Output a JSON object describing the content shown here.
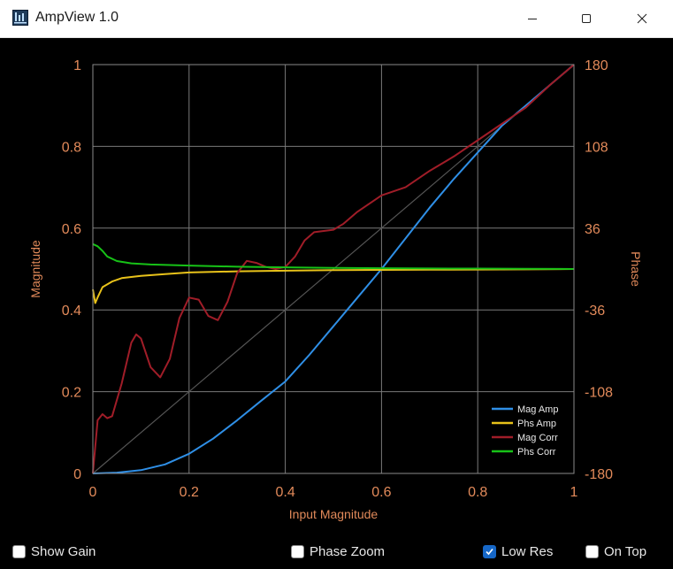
{
  "window": {
    "title": "AmpView 1.0",
    "icon": "ampview-app-icon"
  },
  "controls": {
    "show_gain": {
      "label": "Show Gain",
      "checked": false
    },
    "phase_zoom": {
      "label": "Phase Zoom",
      "checked": false
    },
    "low_res": {
      "label": "Low Res",
      "checked": true
    },
    "on_top": {
      "label": "On Top",
      "checked": false
    }
  },
  "chart_data": {
    "type": "line",
    "xlabel": "Input Magnitude",
    "ylabel": "Magnitude",
    "y2label": "Phase",
    "xlim": [
      0,
      1
    ],
    "ylim": [
      0,
      1
    ],
    "y2lim": [
      -180,
      180
    ],
    "xticks": [
      "0",
      "0.2",
      "0.4",
      "0.6",
      "0.8",
      "1"
    ],
    "yticks": [
      "0",
      "0.2",
      "0.4",
      "0.6",
      "0.8",
      "1"
    ],
    "y2ticks": [
      "-180",
      "-108",
      "-36",
      "36",
      "108",
      "180"
    ],
    "grid": true,
    "legend_position": "bottom-right",
    "reference_line": {
      "x": [
        0,
        1
      ],
      "y": [
        0,
        1
      ],
      "color": "#555555"
    },
    "series": [
      {
        "name": "Mag Amp",
        "color": "#2f8fe6",
        "axis": "left",
        "x": [
          0,
          0.05,
          0.1,
          0.15,
          0.2,
          0.25,
          0.3,
          0.35,
          0.4,
          0.45,
          0.5,
          0.55,
          0.6,
          0.65,
          0.7,
          0.75,
          0.8,
          0.85,
          0.9,
          0.95,
          1.0
        ],
        "y": [
          0,
          0.002,
          0.008,
          0.022,
          0.048,
          0.085,
          0.13,
          0.178,
          0.225,
          0.29,
          0.36,
          0.43,
          0.5,
          0.575,
          0.65,
          0.72,
          0.785,
          0.85,
          0.9,
          0.95,
          1.0
        ]
      },
      {
        "name": "Phs Amp",
        "color": "#e8c21a",
        "axis": "right",
        "x": [
          0,
          0.005,
          0.01,
          0.02,
          0.04,
          0.06,
          0.1,
          0.15,
          0.2,
          0.3,
          0.4,
          0.5,
          0.6,
          0.7,
          0.8,
          0.9,
          1.0
        ],
        "y": [
          -18,
          -30,
          -25,
          -16,
          -11,
          -8,
          -6,
          -4.5,
          -3,
          -2,
          -1.5,
          -1,
          -0.8,
          -0.6,
          -0.5,
          -0.3,
          0
        ]
      },
      {
        "name": "Mag Corr",
        "color": "#a01d28",
        "axis": "left",
        "x": [
          0,
          0.01,
          0.02,
          0.03,
          0.04,
          0.06,
          0.08,
          0.09,
          0.1,
          0.12,
          0.14,
          0.16,
          0.18,
          0.2,
          0.22,
          0.24,
          0.26,
          0.28,
          0.3,
          0.32,
          0.34,
          0.36,
          0.38,
          0.4,
          0.42,
          0.44,
          0.46,
          0.48,
          0.5,
          0.52,
          0.55,
          0.6,
          0.65,
          0.7,
          0.75,
          0.8,
          0.85,
          0.9,
          0.95,
          1.0
        ],
        "y": [
          0,
          0.13,
          0.145,
          0.135,
          0.14,
          0.22,
          0.32,
          0.34,
          0.33,
          0.26,
          0.235,
          0.28,
          0.38,
          0.43,
          0.425,
          0.385,
          0.375,
          0.42,
          0.49,
          0.52,
          0.515,
          0.505,
          0.5,
          0.505,
          0.53,
          0.57,
          0.59,
          0.593,
          0.596,
          0.61,
          0.64,
          0.68,
          0.7,
          0.74,
          0.775,
          0.815,
          0.855,
          0.895,
          0.95,
          1.0
        ]
      },
      {
        "name": "Phs Corr",
        "color": "#17c217",
        "axis": "right",
        "x": [
          0,
          0.01,
          0.02,
          0.03,
          0.05,
          0.08,
          0.12,
          0.2,
          0.3,
          0.4,
          0.5,
          0.6,
          0.7,
          0.8,
          0.9,
          1.0
        ],
        "y": [
          22,
          20,
          16,
          11,
          7,
          5,
          4,
          3,
          2,
          1.5,
          1,
          0.7,
          0.5,
          0.4,
          0.2,
          0
        ]
      }
    ]
  }
}
